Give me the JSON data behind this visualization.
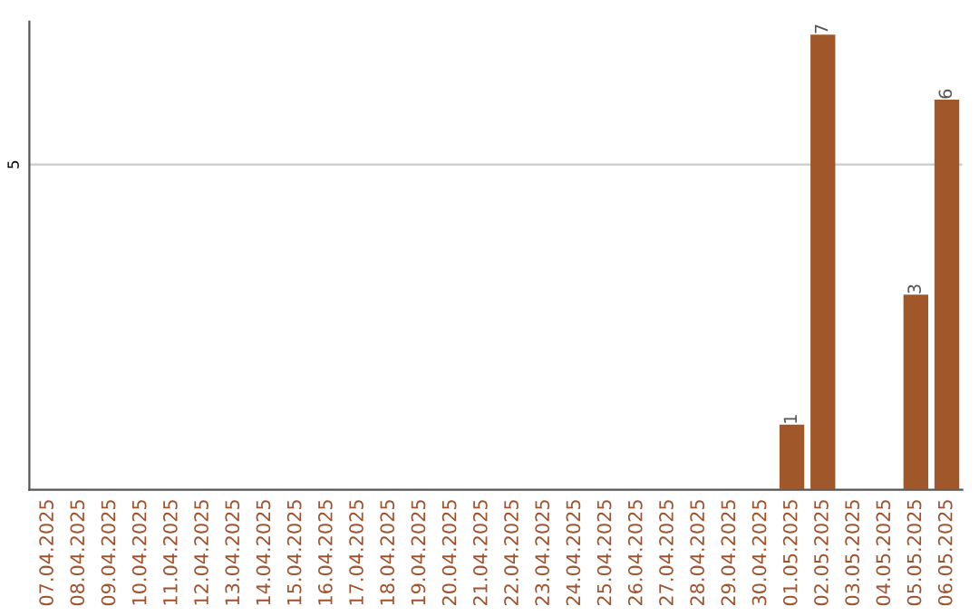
{
  "chart_data": {
    "type": "bar",
    "categories": [
      "07.04.2025",
      "08.04.2025",
      "09.04.2025",
      "10.04.2025",
      "11.04.2025",
      "12.04.2025",
      "13.04.2025",
      "14.04.2025",
      "15.04.2025",
      "16.04.2025",
      "17.04.2025",
      "18.04.2025",
      "19.04.2025",
      "20.04.2025",
      "21.04.2025",
      "22.04.2025",
      "23.04.2025",
      "24.04.2025",
      "25.04.2025",
      "26.04.2025",
      "27.04.2025",
      "28.04.2025",
      "29.04.2025",
      "30.04.2025",
      "01.05.2025",
      "02.05.2025",
      "03.05.2025",
      "04.05.2025",
      "05.05.2025",
      "06.05.2025"
    ],
    "values": [
      null,
      null,
      null,
      null,
      null,
      null,
      null,
      null,
      null,
      null,
      null,
      null,
      null,
      null,
      null,
      null,
      null,
      null,
      null,
      null,
      null,
      null,
      null,
      null,
      1,
      7,
      null,
      null,
      3,
      6
    ],
    "value_labels": [
      null,
      null,
      null,
      null,
      null,
      null,
      null,
      null,
      null,
      null,
      null,
      null,
      null,
      null,
      null,
      null,
      null,
      null,
      null,
      null,
      null,
      null,
      null,
      null,
      "1",
      "7",
      null,
      null,
      "3",
      "6"
    ],
    "color": "#a0582a",
    "ylim": [
      0,
      7.2
    ],
    "yticks": [
      5
    ],
    "grid": "y"
  }
}
